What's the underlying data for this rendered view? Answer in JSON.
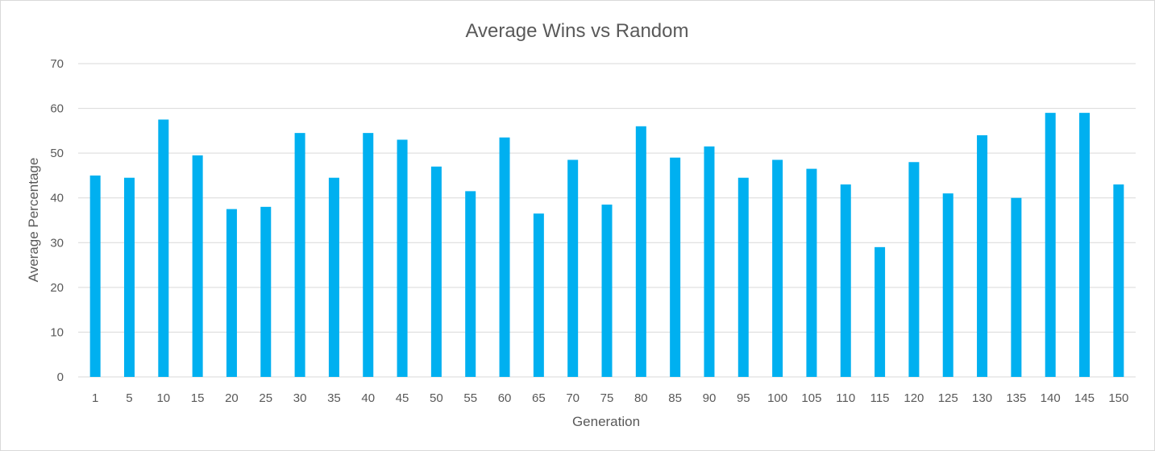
{
  "chart_data": {
    "type": "bar",
    "title": "Average Wins vs Random",
    "xlabel": "Generation",
    "ylabel": "Average Percentage",
    "categories": [
      "1",
      "5",
      "10",
      "15",
      "20",
      "25",
      "30",
      "35",
      "40",
      "45",
      "50",
      "55",
      "60",
      "65",
      "70",
      "75",
      "80",
      "85",
      "90",
      "95",
      "100",
      "105",
      "110",
      "115",
      "120",
      "125",
      "130",
      "135",
      "140",
      "145",
      "150"
    ],
    "values": [
      45,
      44.5,
      57.5,
      49.5,
      37.5,
      38,
      54.5,
      44.5,
      54.5,
      53,
      47,
      41.5,
      53.5,
      36.5,
      48.5,
      38.5,
      56,
      49,
      51.5,
      44.5,
      48.5,
      46.5,
      43,
      29,
      48,
      41,
      54,
      40,
      59,
      59,
      43
    ],
    "ylim": [
      0,
      70
    ],
    "yticks": [
      0,
      10,
      20,
      30,
      40,
      50,
      60,
      70
    ],
    "grid": true,
    "legend": "none",
    "bar_color": "#00b0f0",
    "grid_color": "#d9d9d9"
  }
}
